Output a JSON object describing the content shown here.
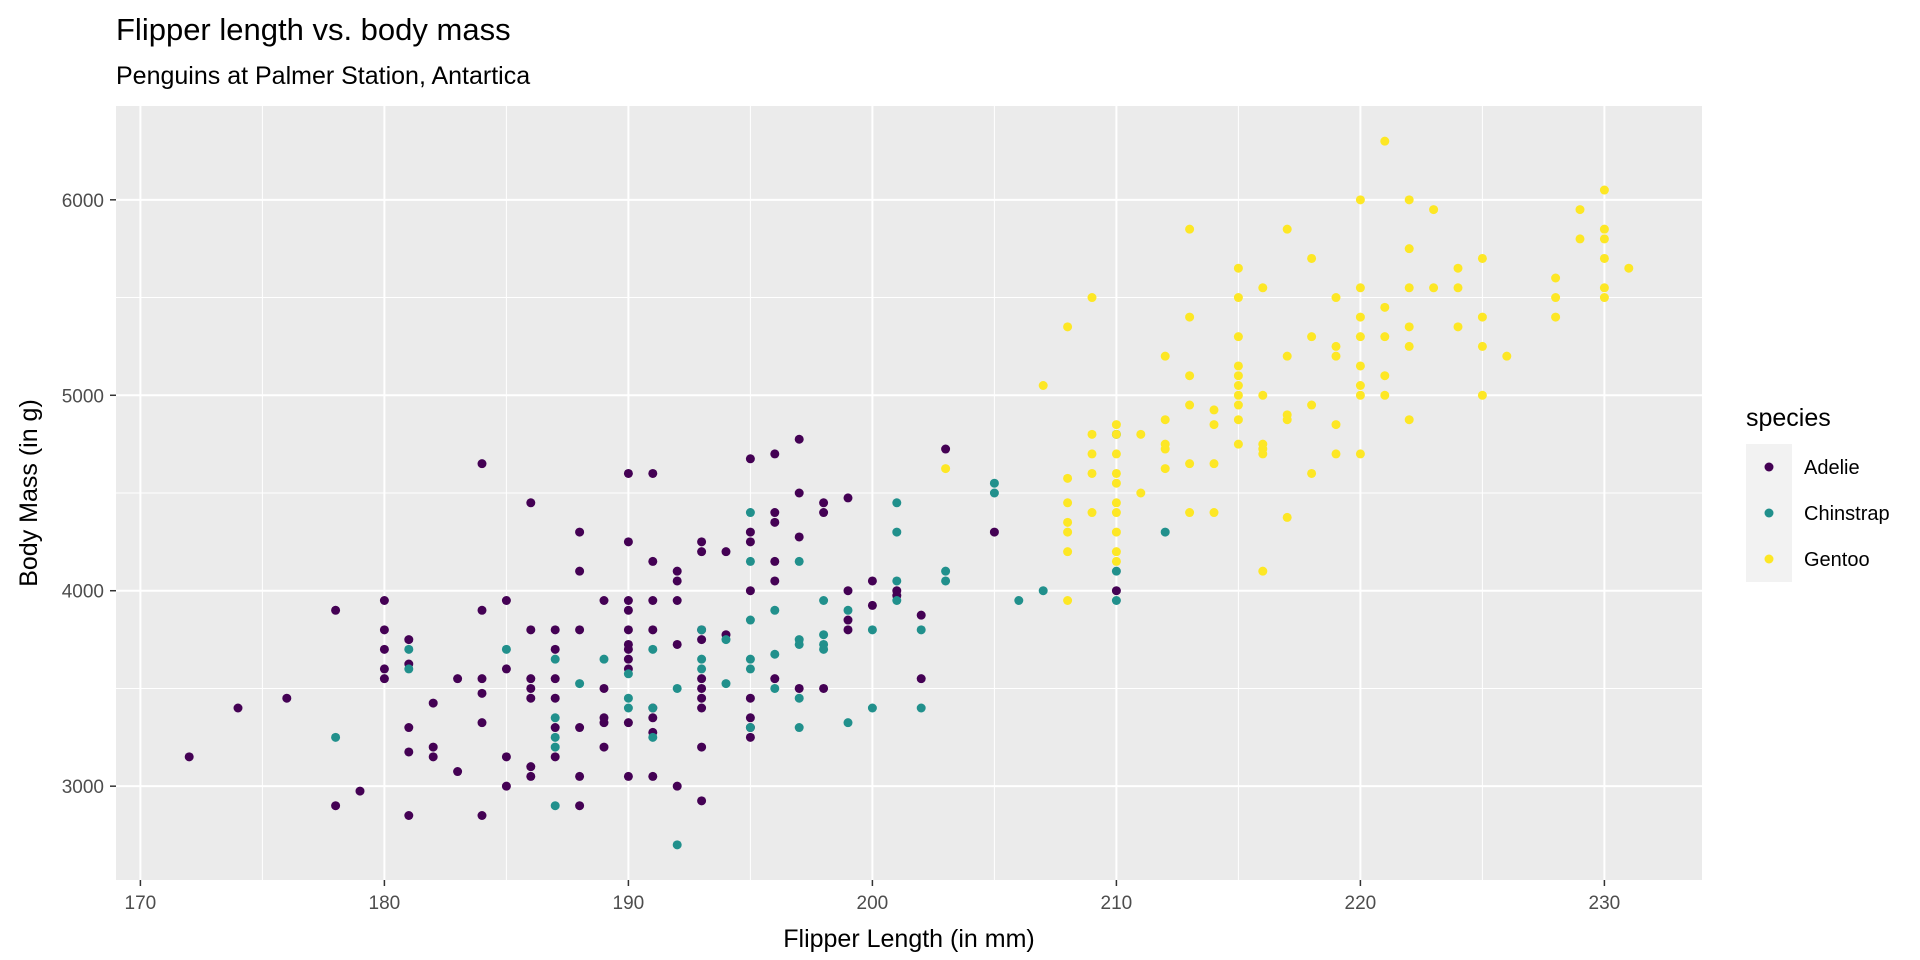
{
  "chart_data": {
    "type": "scatter",
    "title": "Flipper length vs. body mass",
    "subtitle": "Penguins at Palmer Station, Antartica",
    "xlabel": "Flipper Length (in mm)",
    "ylabel": "Body Mass (in g)",
    "xlim": [
      169,
      234
    ],
    "ylim": [
      2520,
      6480
    ],
    "x_ticks": [
      170,
      180,
      190,
      200,
      210,
      220,
      230
    ],
    "y_ticks": [
      3000,
      4000,
      5000,
      6000
    ],
    "x_tick_labels": [
      "170",
      "180",
      "190",
      "200",
      "210",
      "220",
      "230"
    ],
    "y_tick_labels": [
      "3000",
      "4000",
      "5000",
      "6000"
    ],
    "grid": true,
    "legend": {
      "title": "species",
      "position": "right"
    },
    "series": [
      {
        "name": "Adelie",
        "color": "#440154",
        "points": [
          [
            172,
            3150
          ],
          [
            174,
            3400
          ],
          [
            176,
            3450
          ],
          [
            178,
            3900
          ],
          [
            178,
            2900
          ],
          [
            179,
            2975
          ],
          [
            180,
            3950
          ],
          [
            180,
            3800
          ],
          [
            180,
            3700
          ],
          [
            180,
            3600
          ],
          [
            180,
            3550
          ],
          [
            181,
            3750
          ],
          [
            181,
            3625
          ],
          [
            181,
            3300
          ],
          [
            181,
            3175
          ],
          [
            181,
            2850
          ],
          [
            182,
            3425
          ],
          [
            182,
            3200
          ],
          [
            182,
            3150
          ],
          [
            183,
            3550
          ],
          [
            183,
            3075
          ],
          [
            184,
            4650
          ],
          [
            184,
            3900
          ],
          [
            184,
            3550
          ],
          [
            184,
            3475
          ],
          [
            184,
            3325
          ],
          [
            184,
            2850
          ],
          [
            185,
            3950
          ],
          [
            185,
            3600
          ],
          [
            185,
            3150
          ],
          [
            185,
            3000
          ],
          [
            186,
            4450
          ],
          [
            186,
            3800
          ],
          [
            186,
            3550
          ],
          [
            186,
            3500
          ],
          [
            186,
            3450
          ],
          [
            186,
            3100
          ],
          [
            186,
            3050
          ],
          [
            187,
            3800
          ],
          [
            187,
            3700
          ],
          [
            187,
            3550
          ],
          [
            187,
            3450
          ],
          [
            187,
            3300
          ],
          [
            187,
            3150
          ],
          [
            188,
            4300
          ],
          [
            188,
            4100
          ],
          [
            188,
            3800
          ],
          [
            188,
            3300
          ],
          [
            188,
            3050
          ],
          [
            188,
            2900
          ],
          [
            189,
            3950
          ],
          [
            189,
            3500
          ],
          [
            189,
            3350
          ],
          [
            189,
            3325
          ],
          [
            189,
            3200
          ],
          [
            190,
            4600
          ],
          [
            190,
            4250
          ],
          [
            190,
            3950
          ],
          [
            190,
            3900
          ],
          [
            190,
            3800
          ],
          [
            190,
            3725
          ],
          [
            190,
            3700
          ],
          [
            190,
            3650
          ],
          [
            190,
            3600
          ],
          [
            190,
            3325
          ],
          [
            190,
            3050
          ],
          [
            191,
            4600
          ],
          [
            191,
            4150
          ],
          [
            191,
            3950
          ],
          [
            191,
            3800
          ],
          [
            191,
            3400
          ],
          [
            191,
            3350
          ],
          [
            191,
            3275
          ],
          [
            191,
            3050
          ],
          [
            192,
            4100
          ],
          [
            192,
            4050
          ],
          [
            192,
            3950
          ],
          [
            192,
            3725
          ],
          [
            192,
            3000
          ],
          [
            193,
            4250
          ],
          [
            193,
            4200
          ],
          [
            193,
            3800
          ],
          [
            193,
            3750
          ],
          [
            193,
            3550
          ],
          [
            193,
            3500
          ],
          [
            193,
            3450
          ],
          [
            193,
            3400
          ],
          [
            193,
            3200
          ],
          [
            193,
            2925
          ],
          [
            194,
            4200
          ],
          [
            194,
            3775
          ],
          [
            195,
            4675
          ],
          [
            195,
            4300
          ],
          [
            195,
            4250
          ],
          [
            195,
            4000
          ],
          [
            195,
            3450
          ],
          [
            195,
            3350
          ],
          [
            195,
            3300
          ],
          [
            195,
            3250
          ],
          [
            196,
            4700
          ],
          [
            196,
            4400
          ],
          [
            196,
            4350
          ],
          [
            196,
            4150
          ],
          [
            196,
            4050
          ],
          [
            196,
            3550
          ],
          [
            197,
            4775
          ],
          [
            197,
            4500
          ],
          [
            197,
            4275
          ],
          [
            197,
            3500
          ],
          [
            198,
            4450
          ],
          [
            198,
            4400
          ],
          [
            198,
            3500
          ],
          [
            199,
            4475
          ],
          [
            199,
            4000
          ],
          [
            199,
            3850
          ],
          [
            199,
            3800
          ],
          [
            200,
            4050
          ],
          [
            200,
            3925
          ],
          [
            201,
            4000
          ],
          [
            201,
            3975
          ],
          [
            202,
            3875
          ],
          [
            202,
            3550
          ],
          [
            203,
            4725
          ],
          [
            205,
            4300
          ],
          [
            210,
            4000
          ]
        ]
      },
      {
        "name": "Chinstrap",
        "color": "#21908C",
        "points": [
          [
            178,
            3250
          ],
          [
            181,
            3700
          ],
          [
            181,
            3600
          ],
          [
            185,
            3700
          ],
          [
            187,
            3650
          ],
          [
            187,
            3350
          ],
          [
            187,
            3250
          ],
          [
            187,
            3200
          ],
          [
            187,
            2900
          ],
          [
            188,
            3525
          ],
          [
            189,
            3650
          ],
          [
            190,
            3575
          ],
          [
            190,
            3450
          ],
          [
            190,
            3400
          ],
          [
            191,
            3700
          ],
          [
            191,
            3400
          ],
          [
            191,
            3250
          ],
          [
            192,
            3500
          ],
          [
            192,
            2700
          ],
          [
            193,
            3800
          ],
          [
            193,
            3650
          ],
          [
            193,
            3600
          ],
          [
            194,
            3750
          ],
          [
            194,
            3525
          ],
          [
            195,
            4400
          ],
          [
            195,
            4150
          ],
          [
            195,
            3850
          ],
          [
            195,
            3650
          ],
          [
            195,
            3600
          ],
          [
            195,
            3300
          ],
          [
            196,
            3900
          ],
          [
            196,
            3675
          ],
          [
            196,
            3500
          ],
          [
            197,
            4150
          ],
          [
            197,
            3750
          ],
          [
            197,
            3725
          ],
          [
            197,
            3450
          ],
          [
            197,
            3300
          ],
          [
            198,
            3950
          ],
          [
            198,
            3775
          ],
          [
            198,
            3725
          ],
          [
            198,
            3700
          ],
          [
            199,
            3900
          ],
          [
            199,
            3325
          ],
          [
            200,
            3800
          ],
          [
            200,
            3400
          ],
          [
            201,
            4450
          ],
          [
            201,
            4300
          ],
          [
            201,
            4050
          ],
          [
            201,
            3950
          ],
          [
            202,
            3800
          ],
          [
            202,
            3400
          ],
          [
            203,
            4100
          ],
          [
            203,
            4050
          ],
          [
            205,
            4550
          ],
          [
            205,
            4500
          ],
          [
            206,
            3950
          ],
          [
            207,
            4000
          ],
          [
            210,
            4800
          ],
          [
            210,
            4100
          ],
          [
            210,
            3950
          ],
          [
            212,
            4300
          ]
        ]
      },
      {
        "name": "Gentoo",
        "color": "#FDE725",
        "points": [
          [
            203,
            4625
          ],
          [
            207,
            5050
          ],
          [
            208,
            5350
          ],
          [
            208,
            4575
          ],
          [
            208,
            4450
          ],
          [
            208,
            4350
          ],
          [
            208,
            4300
          ],
          [
            208,
            4200
          ],
          [
            208,
            3950
          ],
          [
            209,
            5500
          ],
          [
            209,
            4800
          ],
          [
            209,
            4700
          ],
          [
            209,
            4600
          ],
          [
            209,
            4400
          ],
          [
            210,
            4850
          ],
          [
            210,
            4800
          ],
          [
            210,
            4700
          ],
          [
            210,
            4600
          ],
          [
            210,
            4550
          ],
          [
            210,
            4450
          ],
          [
            210,
            4400
          ],
          [
            210,
            4300
          ],
          [
            210,
            4200
          ],
          [
            210,
            4150
          ],
          [
            211,
            4800
          ],
          [
            211,
            4500
          ],
          [
            212,
            5200
          ],
          [
            212,
            4875
          ],
          [
            212,
            4750
          ],
          [
            212,
            4725
          ],
          [
            212,
            4625
          ],
          [
            213,
            5850
          ],
          [
            213,
            5400
          ],
          [
            213,
            5100
          ],
          [
            213,
            4950
          ],
          [
            213,
            4650
          ],
          [
            213,
            4400
          ],
          [
            214,
            4925
          ],
          [
            214,
            4850
          ],
          [
            214,
            4650
          ],
          [
            214,
            4400
          ],
          [
            215,
            5650
          ],
          [
            215,
            5500
          ],
          [
            215,
            5300
          ],
          [
            215,
            5150
          ],
          [
            215,
            5100
          ],
          [
            215,
            5050
          ],
          [
            215,
            5000
          ],
          [
            215,
            4950
          ],
          [
            215,
            4875
          ],
          [
            215,
            4750
          ],
          [
            216,
            5550
          ],
          [
            216,
            5000
          ],
          [
            216,
            4750
          ],
          [
            216,
            4725
          ],
          [
            216,
            4700
          ],
          [
            216,
            4100
          ],
          [
            217,
            5850
          ],
          [
            217,
            5200
          ],
          [
            217,
            4900
          ],
          [
            217,
            4875
          ],
          [
            217,
            4375
          ],
          [
            218,
            5700
          ],
          [
            218,
            5300
          ],
          [
            218,
            4950
          ],
          [
            218,
            4600
          ],
          [
            219,
            5500
          ],
          [
            219,
            5250
          ],
          [
            219,
            5200
          ],
          [
            219,
            4850
          ],
          [
            219,
            4700
          ],
          [
            220,
            6000
          ],
          [
            220,
            5550
          ],
          [
            220,
            5400
          ],
          [
            220,
            5300
          ],
          [
            220,
            5150
          ],
          [
            220,
            5050
          ],
          [
            220,
            5000
          ],
          [
            220,
            4700
          ],
          [
            221,
            6300
          ],
          [
            221,
            5450
          ],
          [
            221,
            5300
          ],
          [
            221,
            5100
          ],
          [
            221,
            5000
          ],
          [
            222,
            6000
          ],
          [
            222,
            5750
          ],
          [
            222,
            5550
          ],
          [
            222,
            5350
          ],
          [
            222,
            5250
          ],
          [
            222,
            4875
          ],
          [
            223,
            5950
          ],
          [
            223,
            5550
          ],
          [
            224,
            5650
          ],
          [
            224,
            5550
          ],
          [
            224,
            5350
          ],
          [
            225,
            5700
          ],
          [
            225,
            5400
          ],
          [
            225,
            5250
          ],
          [
            225,
            5000
          ],
          [
            226,
            5200
          ],
          [
            228,
            5600
          ],
          [
            228,
            5500
          ],
          [
            228,
            5400
          ],
          [
            229,
            5950
          ],
          [
            229,
            5800
          ],
          [
            230,
            6050
          ],
          [
            230,
            5850
          ],
          [
            230,
            5800
          ],
          [
            230,
            5700
          ],
          [
            230,
            5550
          ],
          [
            230,
            5500
          ],
          [
            231,
            5650
          ]
        ]
      }
    ]
  }
}
